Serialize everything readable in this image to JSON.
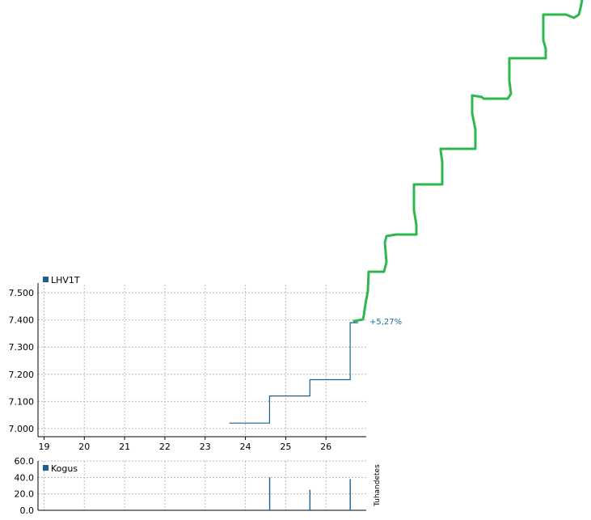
{
  "chart_data": [
    {
      "type": "line",
      "legend": "LHV1T",
      "legend_position": "top-left",
      "x": [
        23.6,
        24.6,
        24.6,
        25.6,
        25.6,
        26.6,
        26.6,
        26.8
      ],
      "y": [
        7.02,
        7.02,
        7.12,
        7.12,
        7.18,
        7.18,
        7.39,
        7.39
      ],
      "ylim": [
        6.97,
        7.53
      ],
      "xlim": [
        18.85,
        27.0
      ],
      "yticks": [
        "7.500",
        "7.400",
        "7.300",
        "7.200",
        "7.100",
        "7.000"
      ],
      "ytick_values": [
        7.5,
        7.4,
        7.3,
        7.2,
        7.1,
        7.0
      ],
      "xticks": [
        "19",
        "20",
        "21",
        "22",
        "23",
        "24",
        "25",
        "26"
      ],
      "xtick_values": [
        19,
        20,
        21,
        22,
        23,
        24,
        25,
        26
      ],
      "grid": true,
      "annotation": "+5,27%",
      "line_color": "#1f5f8b"
    },
    {
      "type": "bar",
      "legend": "Kogus",
      "legend_position": "top-left",
      "x": [
        24.6,
        25.6,
        26.6
      ],
      "values": [
        40,
        25,
        38
      ],
      "ylim": [
        0,
        60
      ],
      "yticks": [
        "60.0",
        "40.0",
        "20.0",
        "0.0"
      ],
      "ytick_values": [
        60,
        40,
        20,
        0
      ],
      "ylabel": "Tuhandetes",
      "grid": true,
      "bar_color": "#1f5f8b"
    }
  ],
  "overlay": {
    "stroke_color": "#2db84d"
  }
}
